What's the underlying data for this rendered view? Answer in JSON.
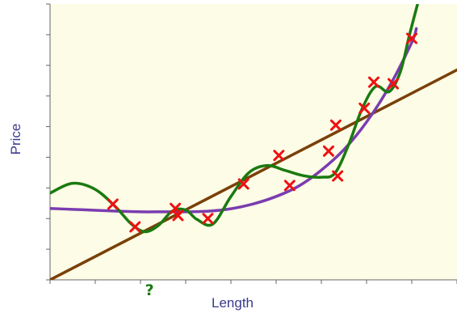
{
  "chart_data": {
    "type": "scatter",
    "title": "",
    "xlabel": "Length",
    "ylabel": "Price",
    "xlim": [
      0,
      9
    ],
    "ylim": [
      0,
      9
    ],
    "grid": false,
    "x_tick_count": 10,
    "y_tick_count": 10,
    "x_axis_annotation": {
      "text": "?",
      "x": 2.2
    },
    "colors": {
      "background": "#fdfce6",
      "points": "#ee1111",
      "linear_fit": "#7a4008",
      "polynomial_fit": "#7a3cb0",
      "overfit": "#1a7a10",
      "axis": "#666666",
      "label": "#3a3a8c",
      "annotation": "#1a7a10"
    },
    "points": [
      {
        "x": 1.39,
        "y": 2.47
      },
      {
        "x": 1.88,
        "y": 1.73
      },
      {
        "x": 2.77,
        "y": 2.33
      },
      {
        "x": 2.83,
        "y": 2.1
      },
      {
        "x": 3.49,
        "y": 2.0
      },
      {
        "x": 4.28,
        "y": 3.13
      },
      {
        "x": 5.06,
        "y": 4.06
      },
      {
        "x": 5.3,
        "y": 3.08
      },
      {
        "x": 6.16,
        "y": 4.2
      },
      {
        "x": 6.32,
        "y": 5.05
      },
      {
        "x": 6.36,
        "y": 3.39
      },
      {
        "x": 6.95,
        "y": 5.6
      },
      {
        "x": 7.16,
        "y": 6.45
      },
      {
        "x": 7.59,
        "y": 6.4
      },
      {
        "x": 8.0,
        "y": 7.88
      }
    ],
    "series": [
      {
        "kind": "linear",
        "x": [
          0,
          9
        ],
        "y": [
          0,
          6.85
        ]
      },
      {
        "kind": "polynomial",
        "x": [
          0,
          0.5,
          1,
          1.5,
          2,
          2.5,
          3,
          3.5,
          4,
          4.5,
          5,
          5.5,
          6,
          6.5,
          7,
          7.5,
          8,
          8.1
        ],
        "y": [
          2.33,
          2.3,
          2.27,
          2.24,
          2.22,
          2.22,
          2.22,
          2.24,
          2.32,
          2.48,
          2.72,
          3.06,
          3.58,
          4.25,
          5.15,
          6.3,
          7.75,
          8.2
        ]
      },
      {
        "kind": "overfit",
        "x": [
          0,
          0.5,
          1,
          1.45,
          1.8,
          2.1,
          2.4,
          2.7,
          3.0,
          3.25,
          3.6,
          4.0,
          4.4,
          4.8,
          5.2,
          5.6,
          6.0,
          6.3,
          6.6,
          6.9,
          7.2,
          7.5,
          7.75,
          7.95,
          8.2
        ],
        "y": [
          2.83,
          3.15,
          2.95,
          2.38,
          1.82,
          1.57,
          1.78,
          2.24,
          2.28,
          1.97,
          1.82,
          2.72,
          3.5,
          3.73,
          3.57,
          3.4,
          3.35,
          3.48,
          4.4,
          5.58,
          6.31,
          6.14,
          6.8,
          8.0,
          9.4
        ]
      }
    ]
  }
}
